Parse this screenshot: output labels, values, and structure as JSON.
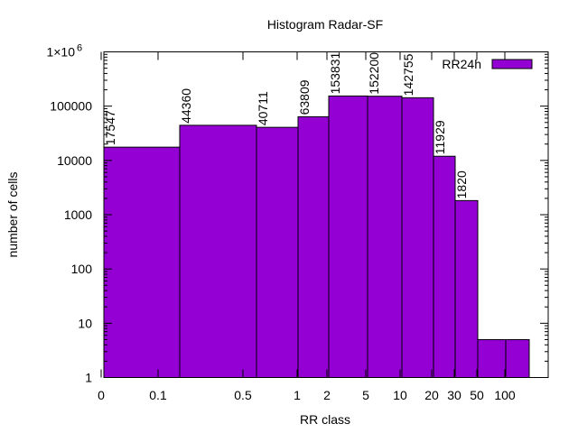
{
  "chart_data": {
    "type": "bar",
    "title": "Histogram Radar-SF",
    "xlabel": "RR class",
    "ylabel": "number of cells",
    "y_scale": "log",
    "ylim": [
      1,
      1000000
    ],
    "y_tick_labels": [
      "1",
      "10",
      "100",
      "1000",
      "10000",
      "100000"
    ],
    "y_top_tick": {
      "base": "1×10",
      "exponent": "6"
    },
    "x_tick_labels": [
      "0",
      "0.1",
      "0.5",
      "1",
      "2",
      "5",
      "10",
      "20",
      "30",
      "50",
      "100"
    ],
    "legend": {
      "position": "top-right"
    },
    "grid": false,
    "series": [
      {
        "name": "RR24h",
        "color": "#9400d3",
        "bins": [
          {
            "from": "0",
            "to": "0.1",
            "value": 17547,
            "label": "17547"
          },
          {
            "from": "0.1",
            "to": "0.5",
            "value": 44360,
            "label": "44360"
          },
          {
            "from": "0.5",
            "to": "1",
            "value": 40711,
            "label": "40711"
          },
          {
            "from": "1",
            "to": "2",
            "value": 63809,
            "label": "63809"
          },
          {
            "from": "2",
            "to": "5",
            "value": 153831,
            "label": "153831"
          },
          {
            "from": "5",
            "to": "10",
            "value": 152200,
            "label": "152200"
          },
          {
            "from": "10",
            "to": "20",
            "value": 142755,
            "label": "142755"
          },
          {
            "from": "20",
            "to": "30",
            "value": 11929,
            "label": "11929"
          },
          {
            "from": "30",
            "to": "50",
            "value": 1820,
            "label": "1820"
          },
          {
            "from": "50",
            "to": "100",
            "value": 5,
            "label": ""
          },
          {
            "from": "100",
            "to": "",
            "value": 5,
            "label": ""
          }
        ]
      }
    ]
  }
}
